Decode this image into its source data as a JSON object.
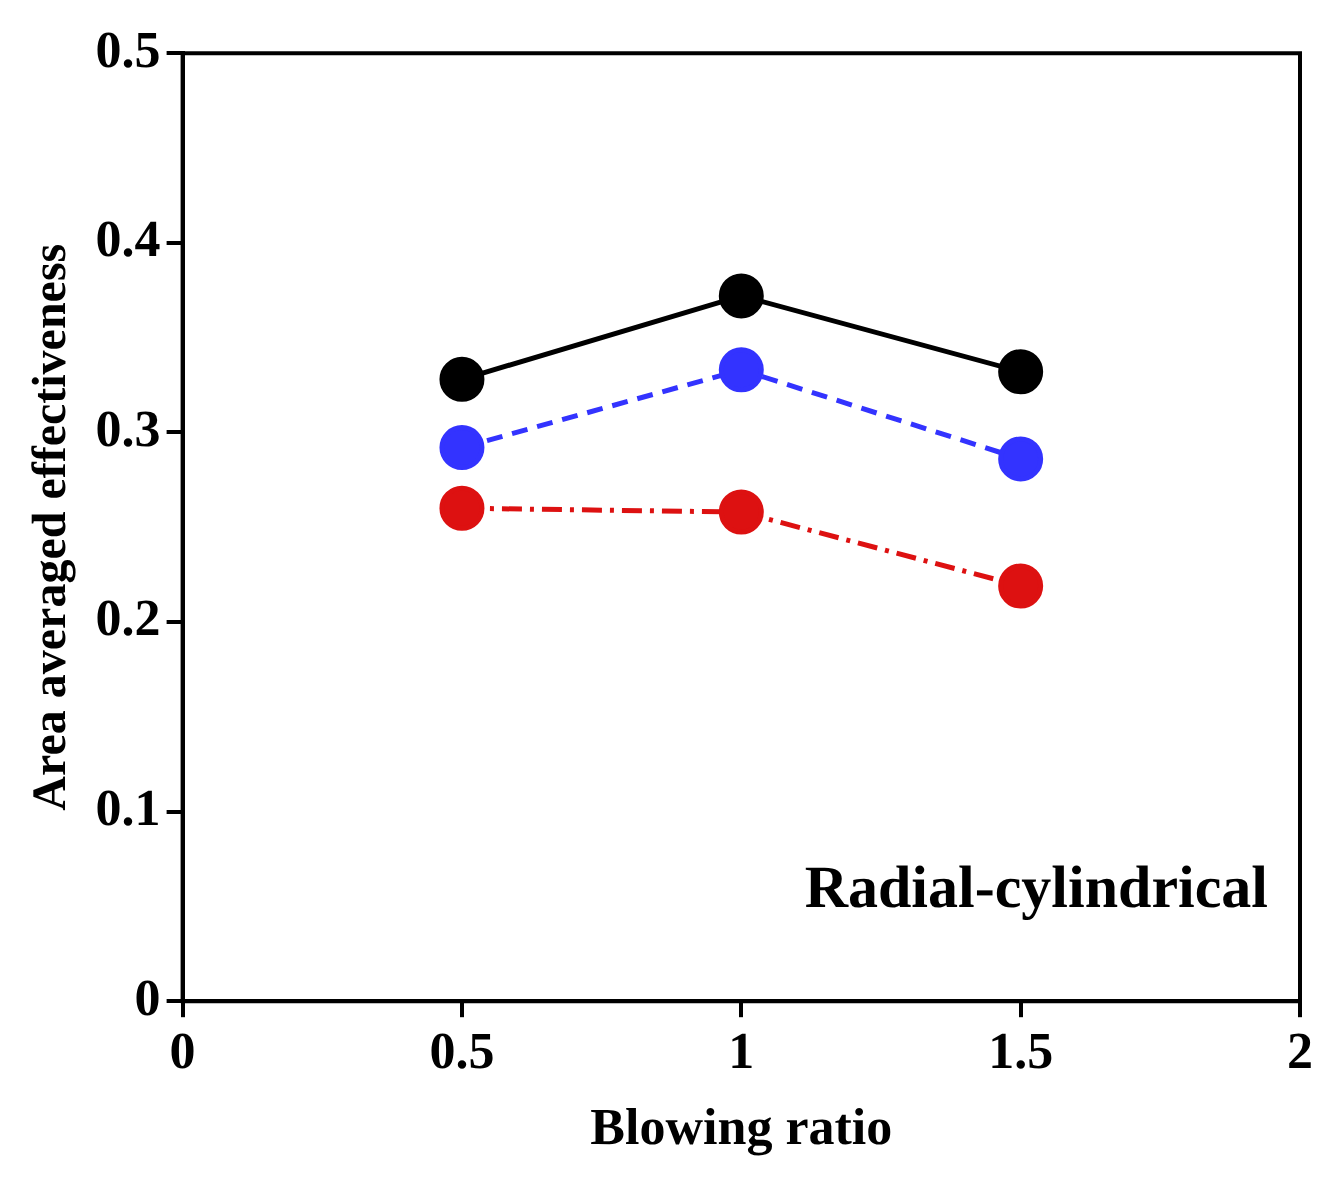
{
  "chart_data": {
    "type": "line",
    "xlabel": "Blowing ratio",
    "ylabel": "Area averaged effectiveness",
    "x": [
      0.5,
      1,
      1.5
    ],
    "series": [
      {
        "color": "#000000",
        "values": [
          0.328,
          0.372,
          0.332
        ],
        "line_style": "solid"
      },
      {
        "color": "#3333ff",
        "values": [
          0.292,
          0.333,
          0.286
        ],
        "line_style": "dashed"
      },
      {
        "color": "#dd1111",
        "values": [
          0.26,
          0.258,
          0.219
        ],
        "line_style": "dashdot"
      }
    ],
    "xlim": [
      0,
      2
    ],
    "xticks": [
      0,
      0.5,
      1,
      1.5,
      2
    ],
    "ylim": [
      0,
      0.5
    ],
    "yticks": [
      0,
      0.1,
      0.2,
      0.3,
      0.4,
      0.5
    ],
    "annotations": [
      "Radial-cylindrical"
    ],
    "marker": "circle",
    "grid": false,
    "legend": false
  }
}
